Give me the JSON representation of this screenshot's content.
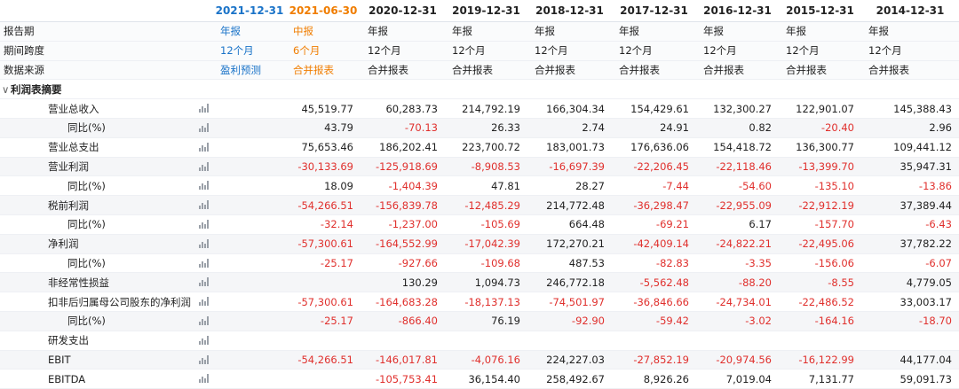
{
  "columns": [
    "2021-12-31",
    "2021-06-30",
    "2020-12-31",
    "2019-12-31",
    "2018-12-31",
    "2017-12-31",
    "2016-12-31",
    "2015-12-31",
    "2014-12-31"
  ],
  "meta_rows": [
    {
      "label": "报告期",
      "values": [
        "年报",
        "中报",
        "年报",
        "年报",
        "年报",
        "年报",
        "年报",
        "年报",
        "年报"
      ]
    },
    {
      "label": "期间跨度",
      "values": [
        "12个月",
        "6个月",
        "12个月",
        "12个月",
        "12个月",
        "12个月",
        "12个月",
        "12个月",
        "12个月"
      ]
    },
    {
      "label": "数据来源",
      "values": [
        "盈利预测",
        "合并报表",
        "合并报表",
        "合并报表",
        "合并报表",
        "合并报表",
        "合并报表",
        "合并报表",
        "合并报表"
      ]
    }
  ],
  "section": {
    "caret": "∨",
    "title": "利润表摘要"
  },
  "rows": [
    {
      "label": "营业总收入",
      "level": 1,
      "values": [
        "",
        "45,519.77",
        "60,283.73",
        "214,792.19",
        "166,304.34",
        "154,429.61",
        "132,300.27",
        "122,901.07",
        "145,388.43"
      ]
    },
    {
      "label": "同比(%)",
      "level": 2,
      "values": [
        "",
        "43.79",
        "-70.13",
        "26.33",
        "2.74",
        "24.91",
        "0.82",
        "-20.40",
        "2.96"
      ]
    },
    {
      "label": "营业总支出",
      "level": 1,
      "values": [
        "",
        "75,653.46",
        "186,202.41",
        "223,700.72",
        "183,001.73",
        "176,636.06",
        "154,418.72",
        "136,300.77",
        "109,441.12"
      ]
    },
    {
      "label": "营业利润",
      "level": 1,
      "values": [
        "",
        "-30,133.69",
        "-125,918.69",
        "-8,908.53",
        "-16,697.39",
        "-22,206.45",
        "-22,118.46",
        "-13,399.70",
        "35,947.31"
      ]
    },
    {
      "label": "同比(%)",
      "level": 2,
      "values": [
        "",
        "18.09",
        "-1,404.39",
        "47.81",
        "28.27",
        "-7.44",
        "-54.60",
        "-135.10",
        "-13.86"
      ]
    },
    {
      "label": "税前利润",
      "level": 1,
      "values": [
        "",
        "-54,266.51",
        "-156,839.78",
        "-12,485.29",
        "214,772.48",
        "-36,298.47",
        "-22,955.09",
        "-22,912.19",
        "37,389.44"
      ]
    },
    {
      "label": "同比(%)",
      "level": 2,
      "values": [
        "",
        "-32.14",
        "-1,237.00",
        "-105.69",
        "664.48",
        "-69.21",
        "6.17",
        "-157.70",
        "-6.43"
      ]
    },
    {
      "label": "净利润",
      "level": 1,
      "values": [
        "",
        "-57,300.61",
        "-164,552.99",
        "-17,042.39",
        "172,270.21",
        "-42,409.14",
        "-24,822.21",
        "-22,495.06",
        "37,782.22"
      ]
    },
    {
      "label": "同比(%)",
      "level": 2,
      "values": [
        "",
        "-25.17",
        "-927.66",
        "-109.68",
        "487.53",
        "-82.83",
        "-3.35",
        "-156.06",
        "-6.07"
      ]
    },
    {
      "label": "非经常性损益",
      "level": 1,
      "values": [
        "",
        "",
        "130.29",
        "1,094.73",
        "246,772.18",
        "-5,562.48",
        "-88.20",
        "-8.55",
        "4,779.05"
      ]
    },
    {
      "label": "扣非后归属母公司股东的净利润",
      "level": 1,
      "values": [
        "",
        "-57,300.61",
        "-164,683.28",
        "-18,137.13",
        "-74,501.97",
        "-36,846.66",
        "-24,734.01",
        "-22,486.52",
        "33,003.17"
      ]
    },
    {
      "label": "同比(%)",
      "level": 2,
      "values": [
        "",
        "-25.17",
        "-866.40",
        "76.19",
        "-92.90",
        "-59.42",
        "-3.02",
        "-164.16",
        "-18.70"
      ]
    },
    {
      "label": "研发支出",
      "level": 1,
      "values": [
        "",
        "",
        "",
        "",
        "",
        "",
        "",
        "",
        ""
      ]
    },
    {
      "label": "EBIT",
      "level": 1,
      "values": [
        "",
        "-54,266.51",
        "-146,017.81",
        "-4,076.16",
        "224,227.03",
        "-27,852.19",
        "-20,974.56",
        "-16,122.99",
        "44,177.04"
      ]
    },
    {
      "label": "EBITDA",
      "level": 1,
      "values": [
        "",
        "",
        "-105,753.41",
        "36,154.40",
        "258,492.67",
        "8,926.26",
        "7,019.04",
        "7,131.77",
        "59,091.73"
      ]
    }
  ],
  "icons": {
    "row_chart": "bar-chart-icon",
    "section_toggle": "chevron-down-icon"
  },
  "colors": {
    "forecast": "#1a73c8",
    "interim": "#f07d00",
    "negative": "#e0302d"
  }
}
